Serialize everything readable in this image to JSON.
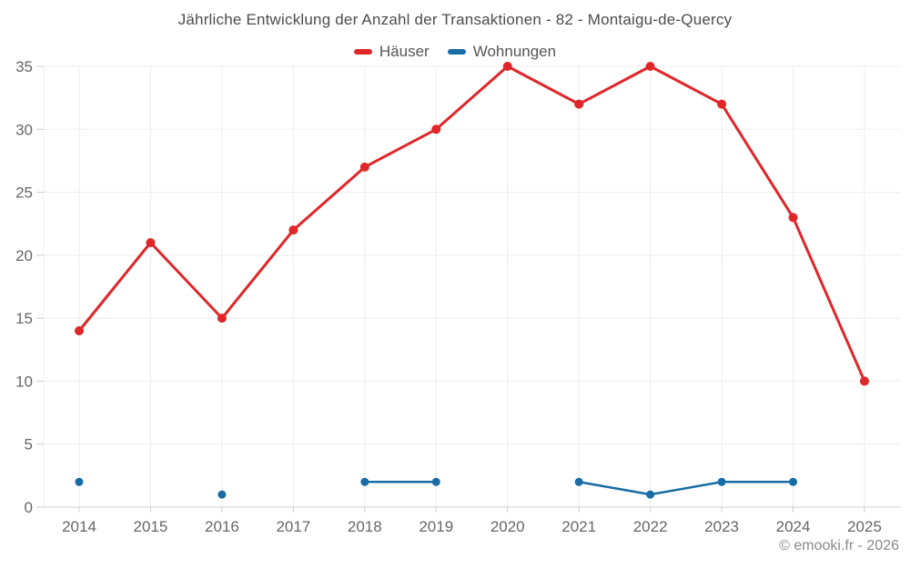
{
  "title": "Jährliche Entwicklung der Anzahl der Transaktionen - 82 - Montaigu-de-Quercy",
  "footer": "© emooki.fr - 2026",
  "legend": {
    "items": [
      {
        "label": "Häuser",
        "color": "#e02629"
      },
      {
        "label": "Wohnungen",
        "color": "#186ca5"
      }
    ]
  },
  "colors": {
    "haeuser": "#e02629",
    "wohnungen": "#186ca5",
    "grid": "#ededed",
    "axis_line": "#cccccc",
    "tick": "#cccccc",
    "axis_label": "#666666",
    "title_text": "#4c4c4c",
    "footer_text": "#8a8a8a"
  },
  "chart_data": {
    "type": "line",
    "title": "Jährliche Entwicklung der Anzahl der Transaktionen - 82 - Montaigu-de-Quercy",
    "categories": [
      "2014",
      "2015",
      "2016",
      "2017",
      "2018",
      "2019",
      "2020",
      "2021",
      "2022",
      "2023",
      "2024",
      "2025"
    ],
    "series": [
      {
        "name": "Häuser",
        "color": "#e02629",
        "marker_radius": 5,
        "line_width": 3,
        "values": [
          14,
          21,
          15,
          22,
          27,
          30,
          35,
          32,
          35,
          32,
          23,
          10
        ]
      },
      {
        "name": "Wohnungen",
        "color": "#186ca5",
        "marker_radius": 4.5,
        "line_width": 2.5,
        "values": [
          2,
          null,
          1,
          null,
          2,
          2,
          null,
          2,
          1,
          2,
          2,
          null
        ]
      }
    ],
    "xlabel": "",
    "ylabel": "",
    "ylim": [
      0,
      35
    ],
    "yticks": [
      0,
      5,
      10,
      15,
      20,
      25,
      30,
      35
    ],
    "grid": true,
    "legend_position": "top"
  }
}
